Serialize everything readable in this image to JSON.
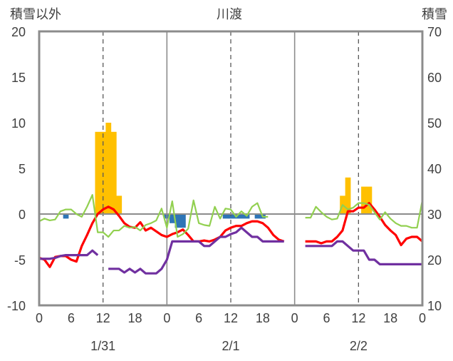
{
  "chart_data": {
    "type": "bar+line",
    "title": "川渡",
    "left_axis": {
      "label": "積雪以外",
      "ylim": [
        -10,
        20
      ],
      "ticks": [
        -10,
        -5,
        0,
        5,
        10,
        15,
        20
      ]
    },
    "right_axis": {
      "label": "積雪",
      "ylim": [
        10,
        70
      ],
      "ticks": [
        10,
        20,
        30,
        40,
        50,
        60,
        70
      ]
    },
    "x_axis": {
      "xlim": [
        0,
        72
      ],
      "tick_positions": [
        0,
        6,
        12,
        18,
        24,
        30,
        36,
        42,
        48,
        54,
        60,
        66,
        72
      ],
      "tick_labels": [
        "0",
        "6",
        "12",
        "18",
        "0",
        "6",
        "12",
        "18",
        "0",
        "6",
        "12",
        "18",
        "0"
      ],
      "day_labels": [
        {
          "x": 12,
          "text": "1/31"
        },
        {
          "x": 36,
          "text": "2/1"
        },
        {
          "x": 60,
          "text": "2/2"
        }
      ],
      "day_dividers": [
        24,
        48
      ],
      "dashed_lines": [
        12,
        36,
        60
      ]
    },
    "series": [
      {
        "name": "",
        "kind": "bar",
        "color": "#FFC000",
        "points": [
          [
            11,
            9
          ],
          [
            12,
            9
          ],
          [
            13,
            10
          ],
          [
            14,
            9
          ],
          [
            15,
            2
          ],
          [
            57,
            2
          ],
          [
            58,
            4
          ],
          [
            61,
            3
          ],
          [
            62,
            3
          ]
        ]
      },
      {
        "name": "",
        "kind": "bar",
        "color": "#2E75B6",
        "points": [
          [
            5,
            -0.5
          ],
          [
            24,
            -0.5
          ],
          [
            25,
            -1
          ],
          [
            26,
            -1.5
          ],
          [
            27,
            -1.5
          ],
          [
            35,
            -0.5
          ],
          [
            36,
            -0.5
          ],
          [
            37,
            -0.5
          ],
          [
            38,
            -0.5
          ],
          [
            39,
            -0.5
          ],
          [
            41,
            -0.5
          ],
          [
            42,
            -0.5
          ]
        ]
      },
      {
        "name": "",
        "kind": "line",
        "color": "#FF0000",
        "points": [
          [
            0,
            -4.8
          ],
          [
            1,
            -5
          ],
          [
            2,
            -5.8
          ],
          [
            3,
            -4.7
          ],
          [
            4,
            -4.6
          ],
          [
            5,
            -4.6
          ],
          [
            6,
            -5
          ],
          [
            7,
            -5.2
          ],
          [
            8,
            -3.5
          ],
          [
            9,
            -2.3
          ],
          [
            10,
            -1
          ],
          [
            11,
            0
          ],
          [
            12,
            0.5
          ],
          [
            13,
            0.8
          ],
          [
            14,
            0.5
          ],
          [
            15,
            -0.2
          ],
          [
            16,
            -1
          ],
          [
            17,
            -1.4
          ],
          [
            18,
            -1.5
          ],
          [
            19,
            -0.9
          ],
          [
            20,
            -1.8
          ],
          [
            21,
            -1.5
          ],
          [
            22,
            -1.9
          ],
          [
            23,
            -2.3
          ],
          [
            24,
            -2.5
          ],
          [
            25,
            -2.2
          ],
          [
            26,
            -2
          ],
          [
            27,
            -1.7
          ],
          [
            28,
            -2.3
          ],
          [
            29,
            -3
          ],
          [
            30,
            -3
          ],
          [
            31,
            -2.9
          ],
          [
            32,
            -3
          ],
          [
            33,
            -2.8
          ],
          [
            34,
            -2.5
          ],
          [
            35,
            -1.8
          ],
          [
            36,
            -1.5
          ],
          [
            37,
            -1.3
          ],
          [
            38,
            -1.3
          ],
          [
            39,
            -1
          ],
          [
            40,
            -0.8
          ],
          [
            41,
            -0.8
          ],
          [
            42,
            -1
          ],
          [
            43,
            -1.5
          ],
          [
            44,
            -2.3
          ],
          [
            45,
            -2.8
          ],
          [
            46,
            -3
          ],
          null,
          [
            50,
            -3
          ],
          [
            51,
            -3
          ],
          [
            52,
            -3
          ],
          [
            53,
            -3.2
          ],
          [
            54,
            -3
          ],
          [
            55,
            -3
          ],
          [
            56,
            -2.5
          ],
          [
            57,
            -1.8
          ],
          [
            58,
            0.3
          ],
          [
            59,
            0.3
          ],
          [
            60,
            0.7
          ],
          [
            61,
            0.7
          ],
          [
            62,
            1.2
          ],
          [
            63,
            0.5
          ],
          [
            64,
            -0.3
          ],
          [
            65,
            -1.2
          ],
          [
            66,
            -1.8
          ],
          [
            67,
            -2.3
          ],
          [
            68,
            -3.4
          ],
          [
            69,
            -2.7
          ],
          [
            70,
            -2.5
          ],
          [
            71,
            -2.5
          ],
          [
            72,
            -3
          ]
        ]
      },
      {
        "name": "",
        "kind": "line",
        "color": "#92D050",
        "points": [
          [
            0,
            -0.8
          ],
          [
            1,
            -0.5
          ],
          [
            2,
            -0.7
          ],
          [
            3,
            -0.6
          ],
          [
            4,
            0.3
          ],
          [
            5,
            0.5
          ],
          [
            6,
            0.5
          ],
          [
            7,
            0
          ],
          [
            8,
            -0.3
          ],
          [
            9,
            0.8
          ],
          [
            10,
            2.1
          ],
          [
            11,
            -2
          ],
          [
            12,
            -2
          ],
          [
            13,
            -2.5
          ],
          [
            14,
            -1.8
          ],
          [
            15,
            -1.8
          ],
          [
            16,
            -1.3
          ],
          [
            17,
            -1.5
          ],
          [
            18,
            -1.4
          ],
          [
            19,
            -1.8
          ],
          [
            20,
            -1.2
          ],
          [
            21,
            -1
          ],
          [
            22,
            -0.7
          ],
          [
            23,
            0.6
          ],
          [
            24,
            -1.5
          ],
          [
            25,
            1.4
          ],
          [
            26,
            -2.5
          ],
          [
            27,
            -2.2
          ],
          [
            28,
            -1.6
          ],
          [
            29,
            1.5
          ],
          [
            30,
            -1
          ],
          [
            31,
            -1.2
          ],
          [
            32,
            -1.3
          ],
          [
            33,
            0.8
          ],
          [
            34,
            -0.5
          ],
          [
            35,
            0.6
          ],
          [
            36,
            0.5
          ],
          [
            37,
            -0.3
          ],
          [
            38,
            0.3
          ],
          [
            39,
            -0.2
          ],
          [
            40,
            0.8
          ],
          [
            41,
            1.2
          ],
          [
            42,
            -0.3
          ],
          [
            43,
            -0.3
          ],
          null,
          [
            50,
            -0.4
          ],
          [
            51,
            -0.4
          ],
          [
            52,
            0.8
          ],
          [
            53,
            0.2
          ],
          [
            54,
            -0.3
          ],
          [
            55,
            -0.6
          ],
          [
            56,
            -0.5
          ],
          [
            57,
            1
          ],
          [
            58,
            0.5
          ],
          [
            59,
            0.7
          ],
          [
            60,
            1.2
          ],
          [
            61,
            1.2
          ],
          [
            62,
            1
          ],
          [
            63,
            0.2
          ],
          [
            64,
            -0.6
          ],
          [
            65,
            0.2
          ],
          [
            66,
            -0.5
          ],
          [
            67,
            -1
          ],
          [
            68,
            -1.3
          ],
          [
            69,
            -1.3
          ],
          [
            70,
            -1.5
          ],
          [
            71,
            -1.5
          ],
          [
            72,
            1.5
          ]
        ]
      },
      {
        "name": "",
        "kind": "line",
        "color": "#7030A0",
        "points": [
          [
            0,
            -4.9
          ],
          [
            1,
            -4.9
          ],
          [
            2,
            -4.9
          ],
          [
            3,
            -4.8
          ],
          [
            4,
            -4.6
          ],
          [
            5,
            -4.5
          ],
          [
            6,
            -4.5
          ],
          [
            7,
            -4.5
          ],
          [
            8,
            -4.5
          ],
          [
            9,
            -4.5
          ],
          [
            10,
            -4
          ],
          [
            11,
            -4.5
          ],
          null,
          [
            13,
            -6
          ],
          [
            14,
            -6
          ],
          [
            15,
            -6
          ],
          [
            16,
            -6.4
          ],
          [
            17,
            -6
          ],
          [
            18,
            -6.4
          ],
          [
            19,
            -6
          ],
          [
            20,
            -6.5
          ],
          [
            21,
            -6.5
          ],
          [
            22,
            -6.5
          ],
          [
            23,
            -6
          ],
          [
            24,
            -5
          ],
          [
            25,
            -3
          ],
          [
            26,
            -3
          ],
          [
            27,
            -3
          ],
          [
            28,
            -3
          ],
          [
            29,
            -3
          ],
          [
            30,
            -3
          ],
          [
            31,
            -3.5
          ],
          [
            32,
            -3.5
          ],
          [
            33,
            -3
          ],
          [
            34,
            -2.5
          ],
          [
            35,
            -2.5
          ],
          [
            36,
            -2.2
          ],
          [
            37,
            -2
          ],
          [
            38,
            -1.5
          ],
          [
            39,
            -2
          ],
          [
            40,
            -2.5
          ],
          [
            41,
            -2.5
          ],
          [
            42,
            -3
          ],
          [
            43,
            -3
          ],
          [
            44,
            -3
          ],
          [
            45,
            -3
          ],
          [
            46,
            -3
          ],
          null,
          [
            50,
            -3.5
          ],
          [
            51,
            -3.5
          ],
          [
            52,
            -3.5
          ],
          [
            53,
            -3.5
          ],
          [
            54,
            -3.5
          ],
          [
            55,
            -3.5
          ],
          [
            56,
            -3
          ],
          [
            57,
            -3
          ],
          [
            58,
            -3.5
          ],
          [
            59,
            -4
          ],
          [
            60,
            -4
          ],
          [
            61,
            -4
          ],
          [
            62,
            -5
          ],
          [
            63,
            -5
          ],
          [
            64,
            -5.5
          ],
          [
            65,
            -5.5
          ],
          [
            66,
            -5.5
          ],
          [
            67,
            -5.5
          ],
          [
            68,
            -5.5
          ],
          [
            69,
            -5.5
          ],
          [
            70,
            -5.5
          ],
          [
            71,
            -5.5
          ],
          [
            72,
            -5.5
          ]
        ]
      }
    ],
    "grid": {
      "horizontal": false,
      "zero_line": true,
      "vertical_dividers": true
    }
  }
}
